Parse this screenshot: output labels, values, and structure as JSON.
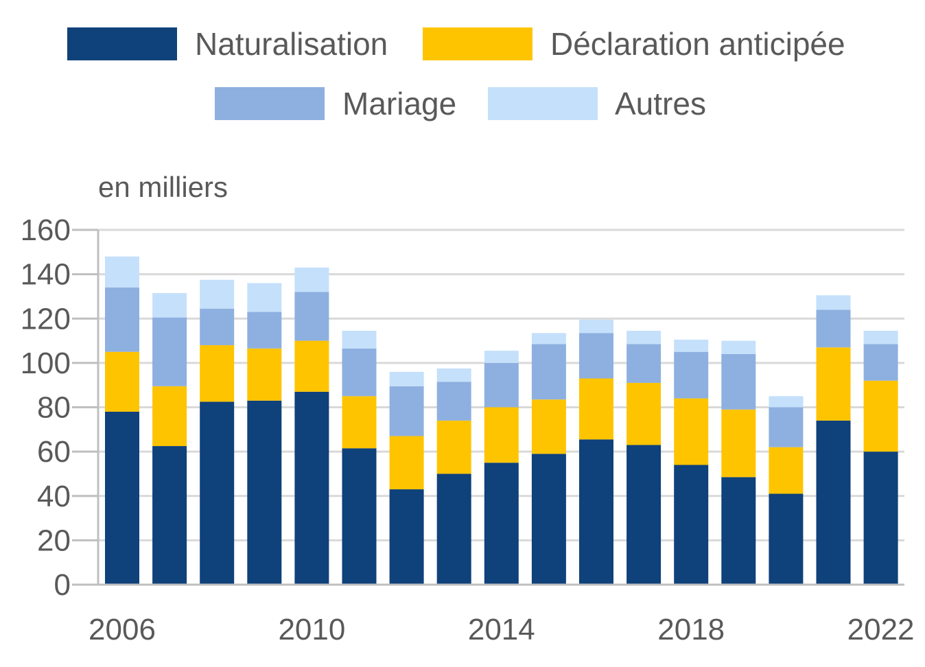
{
  "chart_data": {
    "type": "bar",
    "stacked": true,
    "ylabel": "en milliers",
    "ylim": [
      0,
      160
    ],
    "yticks": [
      0,
      20,
      40,
      60,
      80,
      100,
      120,
      140,
      160
    ],
    "grid": true,
    "legend_position": "top",
    "categories": [
      "2006",
      "2007",
      "2008",
      "2009",
      "2010",
      "2011",
      "2012",
      "2013",
      "2014",
      "2015",
      "2016",
      "2017",
      "2018",
      "2019",
      "2020",
      "2021",
      "2022"
    ],
    "x_tick_labels": [
      "2006",
      "2010",
      "2014",
      "2018",
      "2022"
    ],
    "series": [
      {
        "name": "Naturalisation",
        "color": "#0f417a",
        "values": [
          78,
          62.5,
          82.5,
          83,
          87,
          61.5,
          43,
          50,
          55,
          59,
          65.5,
          63,
          54,
          48.5,
          41,
          74,
          60
        ]
      },
      {
        "name": "Déclaration anticipée",
        "color": "#ffc400",
        "values": [
          27,
          27,
          25.5,
          23.5,
          23,
          23.5,
          24,
          24,
          25,
          24.5,
          27.5,
          28,
          30,
          30.5,
          21,
          33,
          32
        ]
      },
      {
        "name": "Mariage",
        "color": "#8eb0e0",
        "values": [
          29,
          31,
          16.5,
          16.5,
          22,
          21.5,
          22.5,
          17.5,
          20,
          25,
          20.5,
          17.5,
          21,
          25,
          18,
          17,
          16.5
        ]
      },
      {
        "name": "Autres",
        "color": "#c5e0fb",
        "values": [
          14,
          11,
          13,
          13,
          11,
          8,
          6.5,
          6,
          5.5,
          5,
          6,
          6,
          5.5,
          6,
          5,
          6.5,
          6
        ]
      }
    ],
    "colors": {
      "grid": "#d9d9d9",
      "axis": "#bfbfbf",
      "text": "#595959"
    }
  }
}
